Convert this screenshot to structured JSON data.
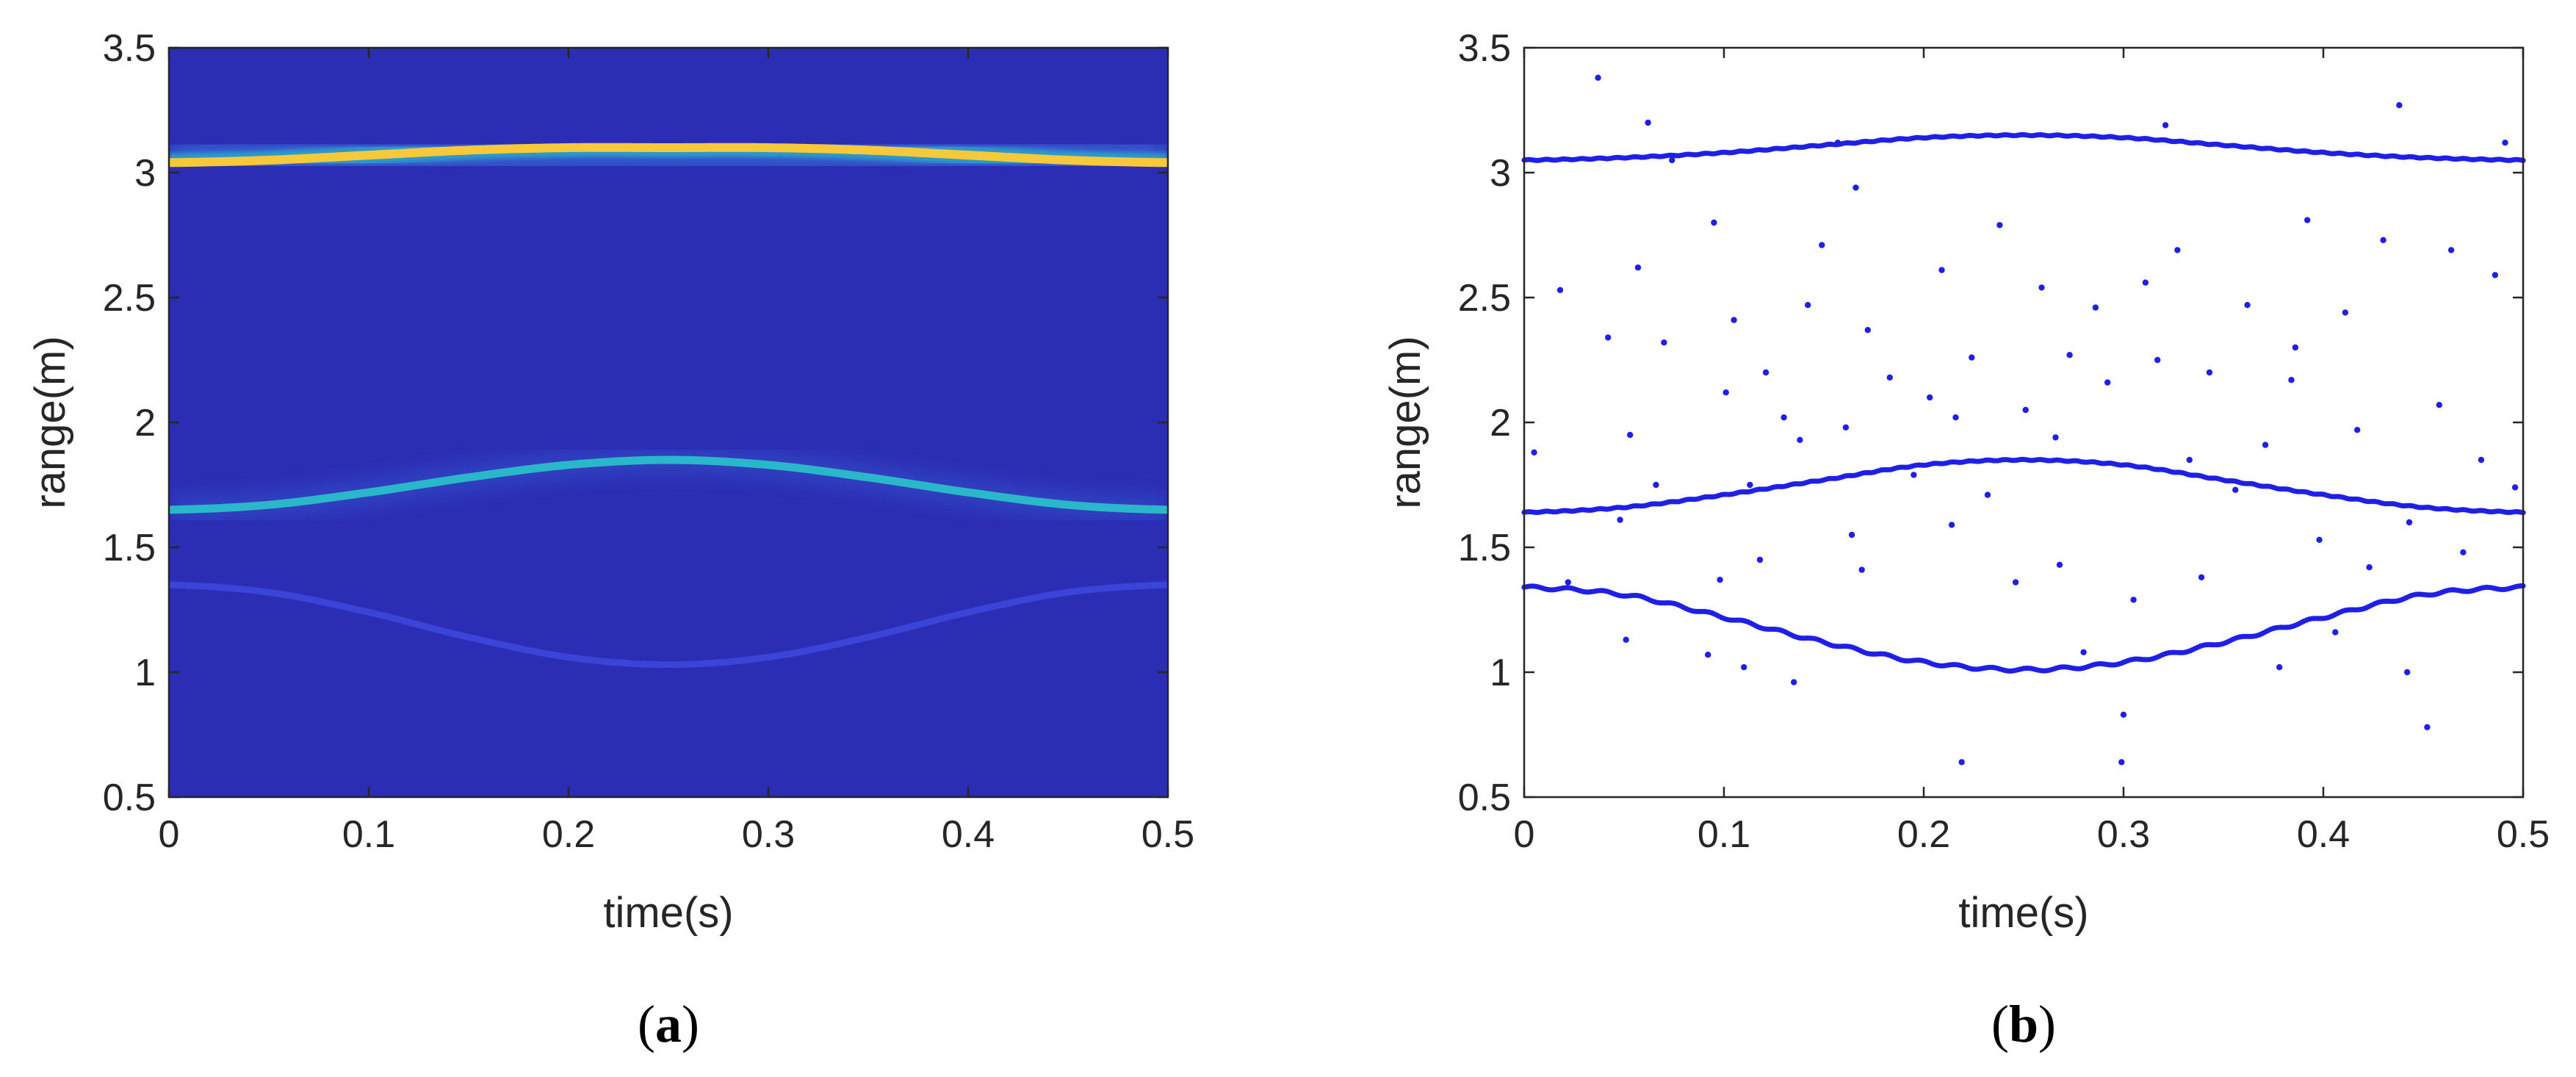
{
  "chart_data": [
    {
      "type": "heatmap",
      "panel_label": "a",
      "xlabel": "time(s)",
      "ylabel": "range(m)",
      "xlim": [
        0,
        0.5
      ],
      "ylim": [
        0.5,
        3.5
      ],
      "xticks": [
        "0",
        "0.1",
        "0.2",
        "0.3",
        "0.4",
        "0.5"
      ],
      "yticks": [
        "0.5",
        "1",
        "1.5",
        "2",
        "2.5",
        "3",
        "3.5"
      ],
      "colors": {
        "background": "#2b2db4",
        "low": "#3a45d8",
        "mid": "#29b7c9",
        "high": "#f6c93a"
      },
      "series": [
        {
          "name": "",
          "intensity": "high",
          "x": [
            0,
            0.05,
            0.1,
            0.15,
            0.2,
            0.25,
            0.3,
            0.35,
            0.4,
            0.45,
            0.5
          ],
          "y": [
            3.04,
            3.05,
            3.07,
            3.09,
            3.1,
            3.1,
            3.1,
            3.09,
            3.07,
            3.05,
            3.04
          ]
        },
        {
          "name": "",
          "intensity": "mid",
          "x": [
            0,
            0.05,
            0.1,
            0.15,
            0.2,
            0.25,
            0.3,
            0.35,
            0.4,
            0.45,
            0.5
          ],
          "y": [
            1.65,
            1.67,
            1.72,
            1.78,
            1.83,
            1.85,
            1.83,
            1.78,
            1.72,
            1.67,
            1.65
          ]
        },
        {
          "name": "",
          "intensity": "low",
          "x": [
            0,
            0.05,
            0.1,
            0.15,
            0.2,
            0.25,
            0.3,
            0.35,
            0.4,
            0.45,
            0.5
          ],
          "y": [
            1.35,
            1.32,
            1.24,
            1.14,
            1.06,
            1.03,
            1.06,
            1.14,
            1.24,
            1.32,
            1.35
          ]
        }
      ]
    },
    {
      "type": "scatter",
      "panel_label": "b",
      "xlabel": "time(s)",
      "ylabel": "range(m)",
      "xlim": [
        0,
        0.5
      ],
      "ylim": [
        0.5,
        3.5
      ],
      "xticks": [
        "0",
        "0.1",
        "0.2",
        "0.3",
        "0.4",
        "0.5"
      ],
      "yticks": [
        "0.5",
        "1",
        "1.5",
        "2",
        "2.5",
        "3",
        "3.5"
      ],
      "colors": {
        "points": "#1f1fe6"
      },
      "series": [
        {
          "name": "",
          "x": [
            0,
            0.05,
            0.1,
            0.15,
            0.2,
            0.25,
            0.3,
            0.35,
            0.4,
            0.45,
            0.5
          ],
          "y": [
            3.05,
            3.06,
            3.08,
            3.11,
            3.14,
            3.15,
            3.14,
            3.11,
            3.08,
            3.06,
            3.05
          ]
        },
        {
          "name": "",
          "x": [
            0,
            0.05,
            0.1,
            0.15,
            0.2,
            0.25,
            0.3,
            0.35,
            0.4,
            0.45,
            0.5
          ],
          "y": [
            1.64,
            1.66,
            1.71,
            1.77,
            1.83,
            1.85,
            1.83,
            1.77,
            1.71,
            1.66,
            1.64
          ]
        },
        {
          "name": "",
          "x": [
            0,
            0.05,
            0.1,
            0.15,
            0.2,
            0.25,
            0.3,
            0.35,
            0.4,
            0.45,
            0.5
          ],
          "y": [
            1.34,
            1.31,
            1.22,
            1.12,
            1.04,
            1.01,
            1.04,
            1.12,
            1.22,
            1.31,
            1.34
          ]
        }
      ],
      "outliers": {
        "x": [
          0.005,
          0.018,
          0.022,
          0.037,
          0.042,
          0.048,
          0.053,
          0.057,
          0.062,
          0.066,
          0.07,
          0.074,
          0.092,
          0.095,
          0.098,
          0.101,
          0.105,
          0.11,
          0.113,
          0.118,
          0.121,
          0.13,
          0.138,
          0.142,
          0.149,
          0.157,
          0.161,
          0.166,
          0.169,
          0.172,
          0.183,
          0.195,
          0.203,
          0.209,
          0.214,
          0.219,
          0.224,
          0.232,
          0.238,
          0.246,
          0.251,
          0.259,
          0.266,
          0.273,
          0.28,
          0.286,
          0.292,
          0.299,
          0.305,
          0.311,
          0.317,
          0.321,
          0.327,
          0.333,
          0.339,
          0.343,
          0.356,
          0.362,
          0.371,
          0.378,
          0.384,
          0.392,
          0.398,
          0.406,
          0.411,
          0.417,
          0.423,
          0.43,
          0.438,
          0.443,
          0.452,
          0.458,
          0.464,
          0.47,
          0.479,
          0.486,
          0.491,
          0.496,
          0.051,
          0.164,
          0.216,
          0.3,
          0.442,
          0.268,
          0.135,
          0.386
        ],
        "y": [
          1.88,
          2.53,
          1.36,
          3.38,
          2.34,
          1.61,
          1.95,
          2.62,
          3.2,
          1.75,
          2.32,
          3.05,
          1.07,
          2.8,
          1.37,
          2.12,
          2.41,
          1.02,
          1.75,
          1.45,
          2.2,
          2.02,
          1.93,
          2.47,
          2.71,
          3.12,
          1.98,
          2.94,
          1.41,
          2.37,
          2.18,
          1.79,
          2.1,
          2.61,
          1.59,
          0.64,
          2.26,
          1.71,
          2.79,
          1.36,
          2.05,
          2.54,
          1.94,
          2.27,
          1.08,
          2.46,
          2.16,
          0.64,
          1.29,
          2.56,
          2.25,
          3.19,
          2.69,
          1.85,
          1.38,
          2.2,
          1.73,
          2.47,
          1.91,
          1.02,
          2.17,
          2.81,
          1.53,
          1.16,
          2.44,
          1.97,
          1.42,
          2.73,
          3.27,
          1.6,
          0.78,
          2.07,
          2.69,
          1.48,
          1.85,
          2.59,
          3.12,
          1.74,
          1.13,
          1.55,
          2.02,
          0.83,
          1.0,
          1.43,
          0.96,
          2.3
        ]
      }
    }
  ]
}
